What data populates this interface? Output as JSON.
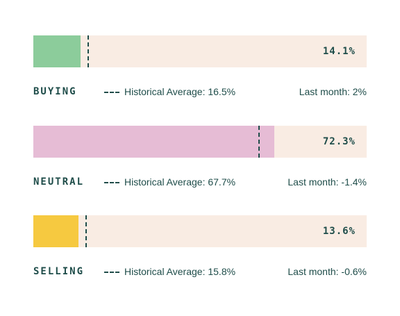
{
  "chart_data": {
    "type": "bar",
    "orientation": "horizontal",
    "xlim": [
      0,
      100
    ],
    "rows": [
      {
        "category": "BUYING",
        "value": 14.1,
        "value_label": "14.1%",
        "historical_average": 16.5,
        "hist_label": "Historical Average: 16.5%",
        "last_month_label": "Last month: 2%",
        "color": "#8ccc9b"
      },
      {
        "category": "NEUTRAL",
        "value": 72.3,
        "value_label": "72.3%",
        "historical_average": 67.7,
        "hist_label": "Historical Average: 67.7%",
        "last_month_label": "Last month: -1.4%",
        "color": "#e6bcd5"
      },
      {
        "category": "SELLING",
        "value": 13.6,
        "value_label": "13.6%",
        "historical_average": 15.8,
        "hist_label": "Historical Average: 15.8%",
        "last_month_label": "Last month: -0.6%",
        "color": "#f6c940"
      }
    ],
    "track_color": "#f9ece3",
    "text_color": "#1f4d4a"
  }
}
